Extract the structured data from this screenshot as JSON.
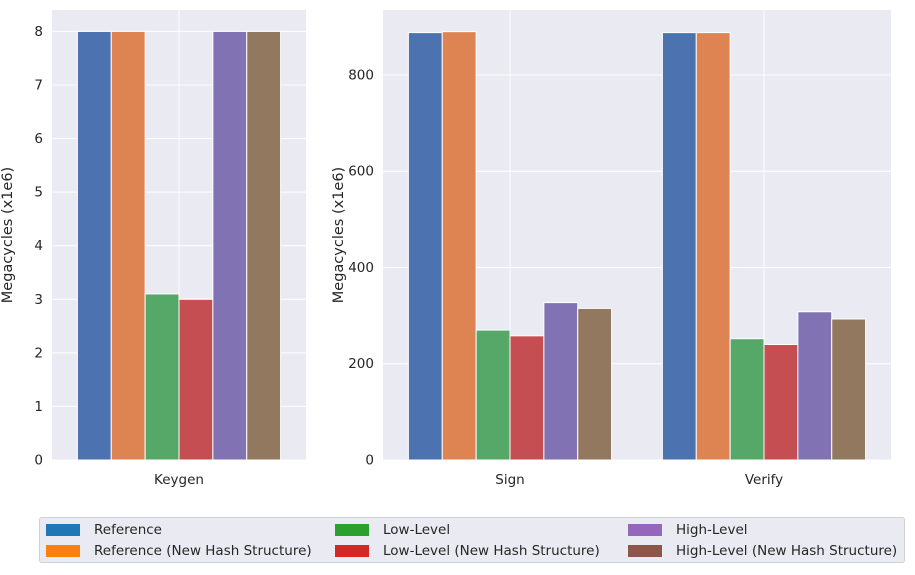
{
  "chart_data": [
    {
      "type": "bar",
      "categories": [
        "Keygen"
      ],
      "ylabel": "Megacycles (x1e6)",
      "xlabel": "",
      "ylim": [
        0,
        8.4
      ],
      "yticks": [
        0,
        1,
        2,
        3,
        4,
        5,
        6,
        7,
        8
      ],
      "grid": true,
      "series": [
        {
          "name": "Reference",
          "values": [
            8.0
          ]
        },
        {
          "name": "Reference (New Hash Structure)",
          "values": [
            8.0
          ]
        },
        {
          "name": "Low-Level",
          "values": [
            3.1
          ]
        },
        {
          "name": "Low-Level (New Hash Structure)",
          "values": [
            3.0
          ]
        },
        {
          "name": "High-Level",
          "values": [
            8.0
          ]
        },
        {
          "name": "High-Level (New Hash Structure)",
          "values": [
            8.0
          ]
        }
      ]
    },
    {
      "type": "bar",
      "categories": [
        "Sign",
        "Verify"
      ],
      "ylabel": "Megacycles (x1e6)",
      "xlabel": "",
      "ylim": [
        0,
        935
      ],
      "yticks": [
        0,
        200,
        400,
        600,
        800
      ],
      "grid": true,
      "series": [
        {
          "name": "Reference",
          "values": [
            888,
            888
          ]
        },
        {
          "name": "Reference (New Hash Structure)",
          "values": [
            890,
            888
          ]
        },
        {
          "name": "Low-Level",
          "values": [
            270,
            252
          ]
        },
        {
          "name": "Low-Level (New Hash Structure)",
          "values": [
            258,
            240
          ]
        },
        {
          "name": "High-Level",
          "values": [
            327,
            308
          ]
        },
        {
          "name": "High-Level (New Hash Structure)",
          "values": [
            315,
            293
          ]
        }
      ]
    }
  ],
  "colors": {
    "bars": [
      "#4c72b0",
      "#dd8452",
      "#55a868",
      "#c44e52",
      "#8172b3",
      "#937860"
    ],
    "legend_swatches": [
      "#1f77b4",
      "#ff7f0e",
      "#2ca02c",
      "#d62728",
      "#9467bd",
      "#8c564b"
    ],
    "plot_background": "#eaeaf2",
    "grid": "#ffffff"
  },
  "legend": {
    "placement": "bottom",
    "items": [
      {
        "label": "Reference"
      },
      {
        "label": "Reference (New Hash Structure)"
      },
      {
        "label": "Low-Level"
      },
      {
        "label": "Low-Level (New Hash Structure)"
      },
      {
        "label": "High-Level"
      },
      {
        "label": "High-Level (New Hash Structure)"
      }
    ]
  }
}
